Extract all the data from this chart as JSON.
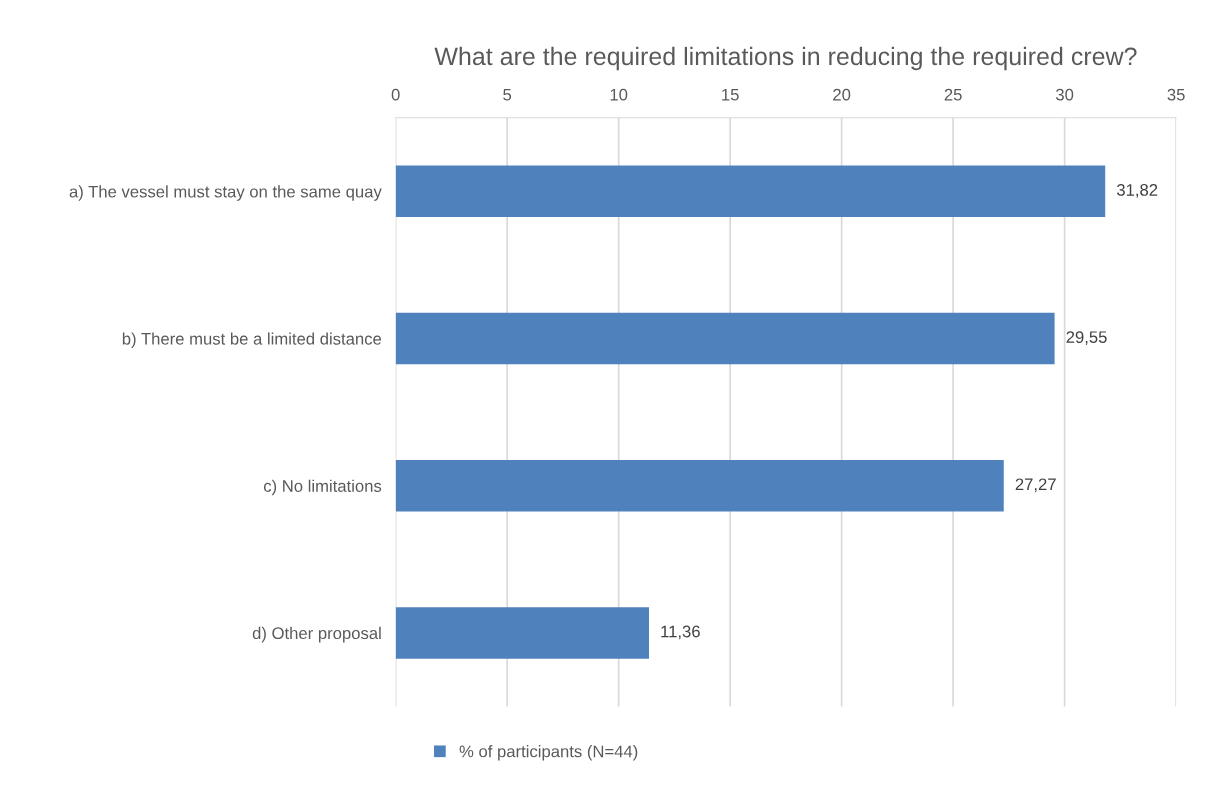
{
  "chart_data": {
    "type": "bar",
    "orientation": "horizontal",
    "title": "What are the required limitations in reducing the required crew?",
    "categories": [
      "a) The vessel must stay on the same quay",
      "b) There must be a limited distance",
      "c) No limitations",
      "d) Other proposal"
    ],
    "series": [
      {
        "name": "% of participants (N=44)",
        "color": "#4f81bd",
        "values": [
          31.82,
          29.55,
          27.27,
          11.36
        ],
        "value_labels": [
          "31,82",
          "29,55",
          "27,27",
          "11,36"
        ]
      }
    ],
    "xlim": [
      0,
      35
    ],
    "xticks": [
      0,
      5,
      10,
      15,
      20,
      25,
      30,
      35
    ],
    "grid": "x",
    "legend": "bottom"
  }
}
